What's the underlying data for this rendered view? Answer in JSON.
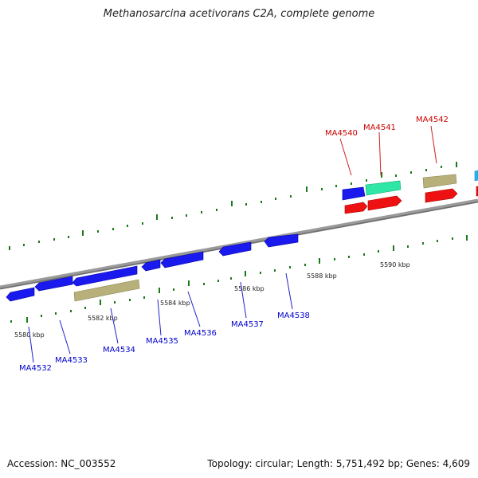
{
  "title": "Methanosarcina acetivorans C2A, complete genome",
  "footer": {
    "accession": "Accession: NC_003552",
    "info": "Topology: circular; Length: 5,751,492 bp; Genes: 4,609"
  },
  "colors": {
    "cds_blue": "#1a1aee",
    "cds_red": "#ee1111",
    "olive": "#b8b07a",
    "teal": "#2ee6a6",
    "cyan": "#22b8f0",
    "backbone": "#808080",
    "tick_green": "#1a7a1a"
  },
  "scale_labels": [
    "5580 kbp",
    "5582 kbp",
    "5584 kbp",
    "5586 kbp",
    "5588 kbp",
    "5590 kbp"
  ],
  "gene_labels": [
    {
      "name": "MA4532",
      "strand": "minus"
    },
    {
      "name": "MA4533",
      "strand": "minus"
    },
    {
      "name": "MA4534",
      "strand": "minus"
    },
    {
      "name": "MA4535",
      "strand": "minus"
    },
    {
      "name": "MA4536",
      "strand": "minus"
    },
    {
      "name": "MA4537",
      "strand": "minus"
    },
    {
      "name": "MA4538",
      "strand": "minus"
    },
    {
      "name": "MA4540",
      "strand": "plus"
    },
    {
      "name": "MA4541",
      "strand": "plus"
    },
    {
      "name": "MA4542",
      "strand": "plus"
    }
  ]
}
